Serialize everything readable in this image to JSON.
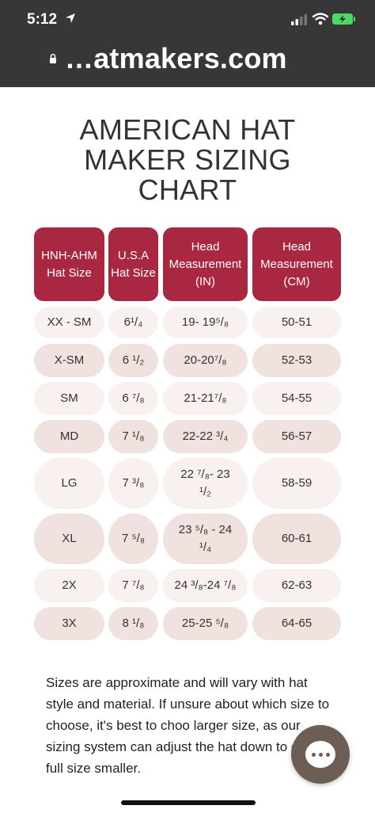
{
  "status_bar": {
    "time": "5:12"
  },
  "browser": {
    "url": "…atmakers.com"
  },
  "page": {
    "title_lines": [
      "AMERICAN HAT",
      "MAKER SIZING",
      "CHART"
    ],
    "headers": [
      [
        "HNH-AHM",
        "Hat Size"
      ],
      [
        "U.S.A",
        "Hat Size"
      ],
      [
        "Head",
        "Measurement",
        "(IN)"
      ],
      [
        "Head",
        "Measurement",
        "(CM)"
      ]
    ],
    "rows": [
      {
        "hnh": "XX - SM",
        "usa": "6¹/₄",
        "inch": [
          "19- 19⁵/₈"
        ],
        "cm": "50-51"
      },
      {
        "hnh": "X-SM",
        "usa": "6 ¹/₂",
        "inch": [
          "20-20⁷/₈"
        ],
        "cm": "52-53"
      },
      {
        "hnh": "SM",
        "usa": "6 ⁷/₈",
        "inch": [
          "21-21⁷/₈"
        ],
        "cm": "54-55"
      },
      {
        "hnh": "MD",
        "usa": "7 ¹/₈",
        "inch": [
          "22-22 ³/₄"
        ],
        "cm": "56-57"
      },
      {
        "hnh": "LG",
        "usa": "7 ³/₈",
        "inch": [
          "22 ⁷/₈- 23",
          "¹/₂"
        ],
        "cm": "58-59"
      },
      {
        "hnh": "XL",
        "usa": "7 ⁵/₈",
        "inch": [
          "23 ⁵/₈ - 24",
          "¹/₄"
        ],
        "cm": "60-61"
      },
      {
        "hnh": "2X",
        "usa": "7 ⁷/₈",
        "inch": [
          "24 ³/₈-24 ⁷/₈"
        ],
        "cm": "62-63"
      },
      {
        "hnh": "3X",
        "usa": "8 ¹/₈",
        "inch": [
          "25-25 ⁵/₈"
        ],
        "cm": "64-65"
      }
    ],
    "note": "Sizes are approximate and will vary with hat style and material. If unsure about which size to choose, it's best to choo larger size, as our sizing system can adjust the hat down to one full size smaller."
  },
  "colors": {
    "header": "#a92740",
    "row_light": "#f8f1f0",
    "row_dark": "#efe2df",
    "chrome": "#373737"
  },
  "icons": [
    "location-arrow-icon",
    "signal-icon",
    "wifi-icon",
    "battery-charging-icon",
    "lock-icon",
    "chat-icon"
  ]
}
